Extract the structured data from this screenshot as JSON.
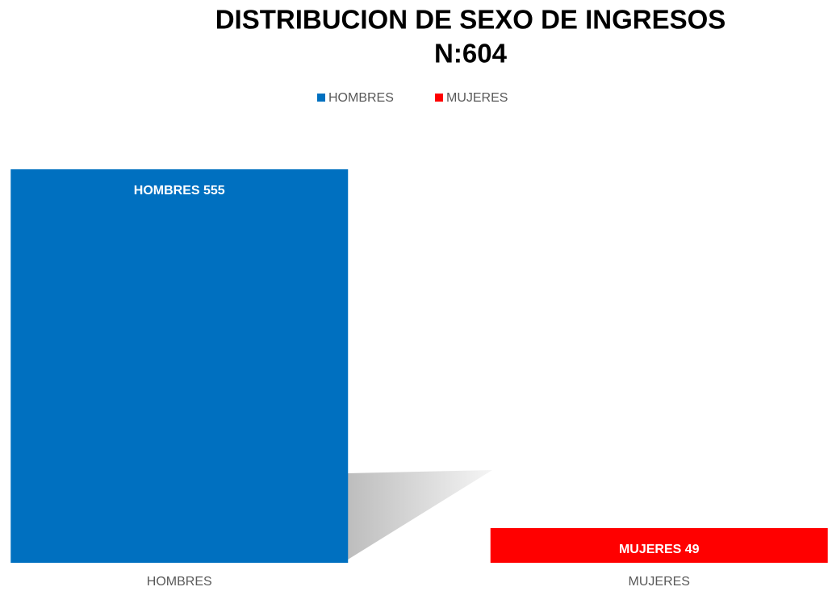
{
  "chart_data": {
    "type": "bar",
    "title": "DISTRIBUCION DE SEXO DE INGRESOS",
    "subtitle": "N:604",
    "categories": [
      "HOMBRES",
      "MUJERES"
    ],
    "values": [
      555,
      49
    ],
    "value_labels": [
      "HOMBRES 555",
      "MUJERES 49"
    ],
    "colors": [
      "#0070c0",
      "#ff0000"
    ],
    "legend": "top"
  }
}
